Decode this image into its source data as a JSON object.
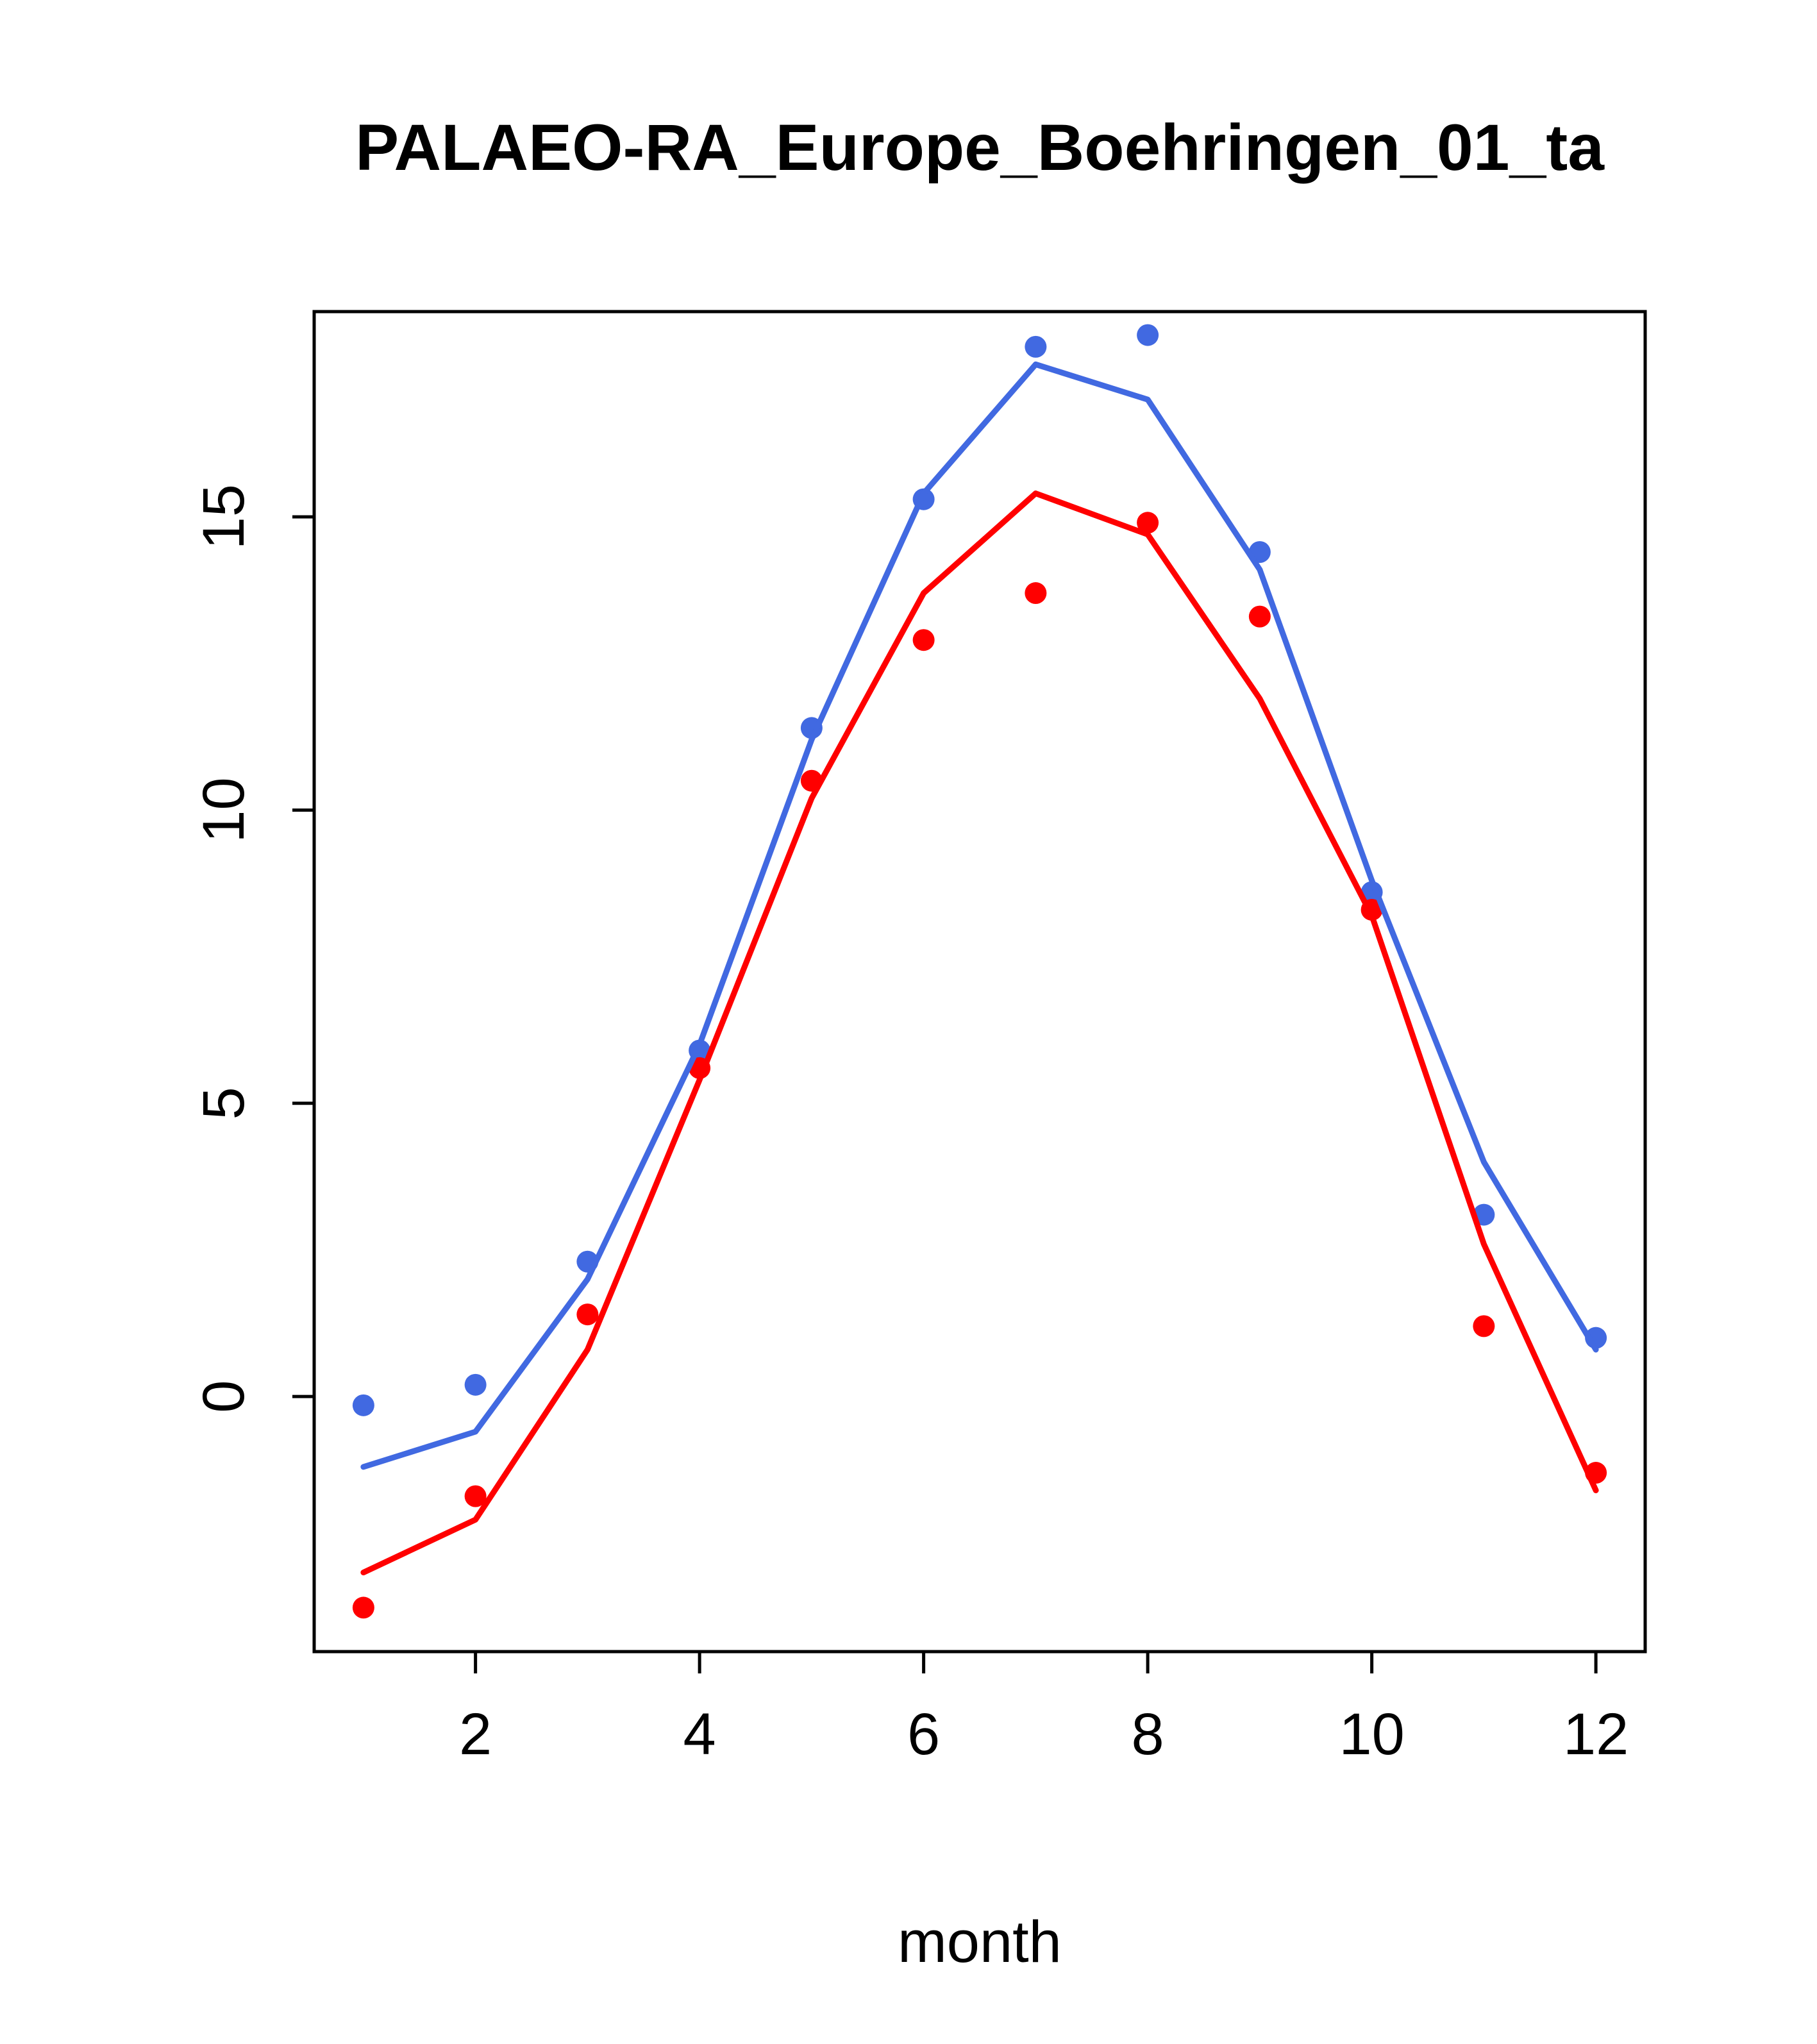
{
  "figure": {
    "background": "#FFFFFF",
    "axis_color": "#000000"
  },
  "chart_data": {
    "type": "line",
    "title": "PALAEO-RA_Europe_Boehringen_01_ta",
    "xlabel": "month",
    "ylabel": "",
    "x": [
      1,
      2,
      3,
      4,
      5,
      6,
      7,
      8,
      9,
      10,
      11,
      12
    ],
    "xlim": [
      0.56,
      12.44
    ],
    "ylim": [
      -4.35,
      18.5
    ],
    "xticks": [
      2,
      4,
      6,
      8,
      10,
      12
    ],
    "yticks": [
      0,
      5,
      10,
      15
    ],
    "grid": false,
    "legend": "none",
    "series": [
      {
        "name": "blue points",
        "style": "points",
        "color": "#4169E1",
        "values": [
          -0.15,
          0.2,
          2.3,
          5.9,
          11.4,
          15.3,
          17.9,
          18.1,
          14.4,
          8.6,
          3.1,
          1.0
        ]
      },
      {
        "name": "red points",
        "style": "points",
        "color": "#FF0000",
        "values": [
          -3.6,
          -1.7,
          1.4,
          5.6,
          10.5,
          12.9,
          13.7,
          14.9,
          13.3,
          8.3,
          1.2,
          -1.3
        ]
      },
      {
        "name": "blue line",
        "style": "line",
        "color": "#4169E1",
        "values": [
          -1.2,
          -0.6,
          2.0,
          6.0,
          11.2,
          15.4,
          17.6,
          17.0,
          14.1,
          8.8,
          4.0,
          0.8
        ]
      },
      {
        "name": "red line",
        "style": "line",
        "color": "#FF0000",
        "values": [
          -3.0,
          -2.1,
          0.8,
          5.4,
          10.2,
          13.7,
          15.4,
          14.7,
          11.9,
          8.2,
          2.6,
          -1.6
        ]
      }
    ]
  }
}
